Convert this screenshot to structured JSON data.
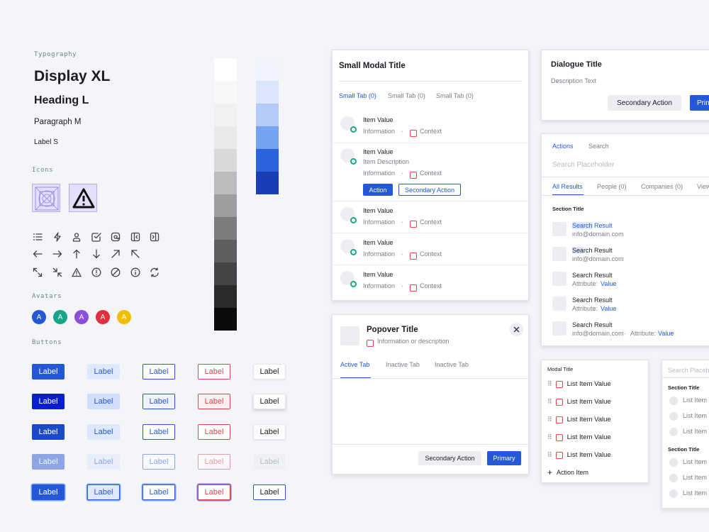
{
  "typography": {
    "section": "Typography",
    "display": "Display XL",
    "heading": "Heading L",
    "paragraph": "Paragraph M",
    "label": "Label S"
  },
  "icons_section": "Icons",
  "icon_names": [
    "list-icon",
    "bolt-icon",
    "user-icon",
    "checkbox-icon",
    "at-icon",
    "panel-left-icon",
    "panel-right-icon",
    "arrow-left-icon",
    "arrow-right-icon",
    "arrow-up-icon",
    "arrow-down-icon",
    "arrow-up-right-icon",
    "arrow-up-left-icon",
    "expand-icon",
    "collapse-icon",
    "warning-icon",
    "alert-circle-icon",
    "block-icon",
    "info-icon",
    "refresh-icon"
  ],
  "avatars": {
    "section": "Avatars",
    "items": [
      {
        "letter": "A",
        "color": "#2458d8"
      },
      {
        "letter": "A",
        "color": "#19a58a"
      },
      {
        "letter": "A",
        "color": "#8a4fdc"
      },
      {
        "letter": "A",
        "color": "#e0303b"
      },
      {
        "letter": "A",
        "color": "#f0c000"
      }
    ]
  },
  "buttons": {
    "section": "Buttons",
    "label": "Label"
  },
  "gray_scale": [
    "#ffffff",
    "#f8f8f9",
    "#f1f1f2",
    "#e9e9ea",
    "#d9d9da",
    "#bcbcbe",
    "#9e9ea0",
    "#7c7c7e",
    "#5e5e60",
    "#444446",
    "#2a2a2b",
    "#0b0b0b"
  ],
  "blue_scale": [
    "#eff3fd",
    "#dbe6fc",
    "#b5cbf8",
    "#74a3f2",
    "#2c64dd",
    "#1a3fb5"
  ],
  "small_modal": {
    "title": "Small Modal Title",
    "tabs": [
      "Small Tab (0)",
      "Small Tab (0)",
      "Small Tab (0)"
    ],
    "item_value": "Item Value",
    "information": "Information",
    "context": "Context",
    "separator": "·",
    "item_description": "Item Description",
    "action": "Action",
    "secondary_action": "Secondary Action"
  },
  "dialogue": {
    "title": "Dialogue Title",
    "description": "Description Text",
    "secondary": "Secondary Action",
    "primary": "Prim"
  },
  "search_panel": {
    "tabs": [
      "Actions",
      "Search"
    ],
    "placeholder": "Search Placeholder",
    "result_tabs": [
      "All Results",
      "People (0)",
      "Companies (0)",
      "View"
    ],
    "section_title": "Section Title",
    "result_title": "Search Result",
    "results": [
      {
        "hl": "Search",
        "rest": " Result",
        "sub": "info@domain.com",
        "attr": ""
      },
      {
        "hl": "Sea",
        "rest": "rch Result",
        "sub": "info@domain.com",
        "attr": ""
      },
      {
        "hl": "",
        "rest": "Search Result",
        "sub": "Attribute:",
        "attr": "Value"
      },
      {
        "hl": "",
        "rest": "Search Result",
        "sub": "Attribute:",
        "attr": "Value"
      },
      {
        "hl": "",
        "rest": "Search Result",
        "sub": "info@domain.com",
        "attr": "Value"
      }
    ],
    "attribute": "Attribute:"
  },
  "popover": {
    "title": "Popover Title",
    "info": "Information or description",
    "tabs": [
      "Active Tab",
      "Inactive Tab",
      "Inactive Tab"
    ],
    "secondary": "Secondary Action",
    "primary": "Primary"
  },
  "list_modal": {
    "title": "Modal Title",
    "items": [
      "List Item Value",
      "List Item Value",
      "List Item Value",
      "List Item Value",
      "List Item Value"
    ],
    "action": "Action Item"
  },
  "right_list": {
    "placeholder": "Search Placeh",
    "section_title": "Section Title",
    "item": "List Item V"
  }
}
